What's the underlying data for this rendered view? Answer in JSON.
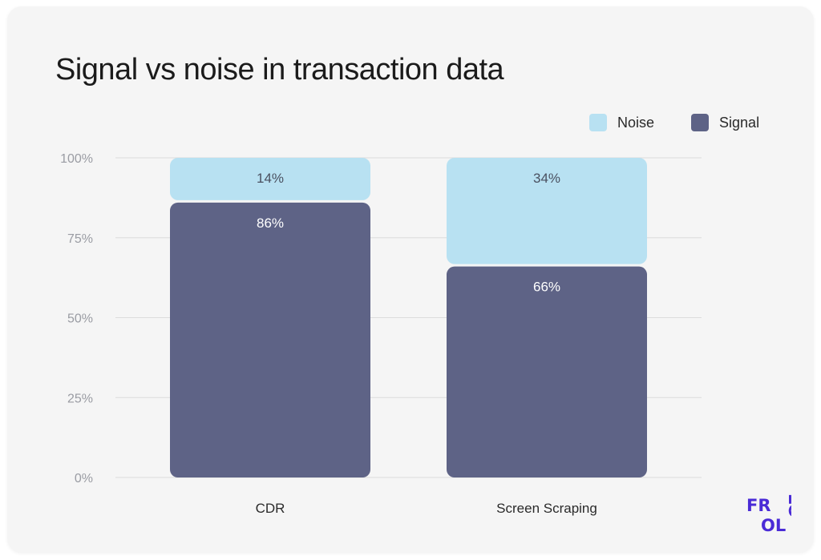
{
  "title": "Signal vs noise in transaction data",
  "legend": [
    {
      "label": "Noise",
      "color": "#b8e1f2"
    },
    {
      "label": "Signal",
      "color": "#5e6386"
    }
  ],
  "chart_data": {
    "type": "bar",
    "stacked": true,
    "title": "Signal vs noise in transaction data",
    "categories": [
      "CDR",
      "Screen Scraping"
    ],
    "series": [
      {
        "name": "Signal",
        "values": [
          86,
          66
        ],
        "color": "#5e6386",
        "label_color": "#ffffff"
      },
      {
        "name": "Noise",
        "values": [
          14,
          34
        ],
        "color": "#b8e1f2",
        "label_color": "#4a5060"
      }
    ],
    "value_suffix": "%",
    "ylim": [
      0,
      100
    ],
    "yticks": [
      0,
      25,
      50,
      75,
      100
    ],
    "ytick_labels": [
      "0%",
      "25%",
      "50%",
      "75%",
      "100%"
    ],
    "grid": true,
    "legend_position": "top-right",
    "xlabel": "",
    "ylabel": ""
  },
  "logo": {
    "line1": "FR",
    "line2": "OL",
    "vertical": "LO",
    "color": "#4a2bd6"
  }
}
